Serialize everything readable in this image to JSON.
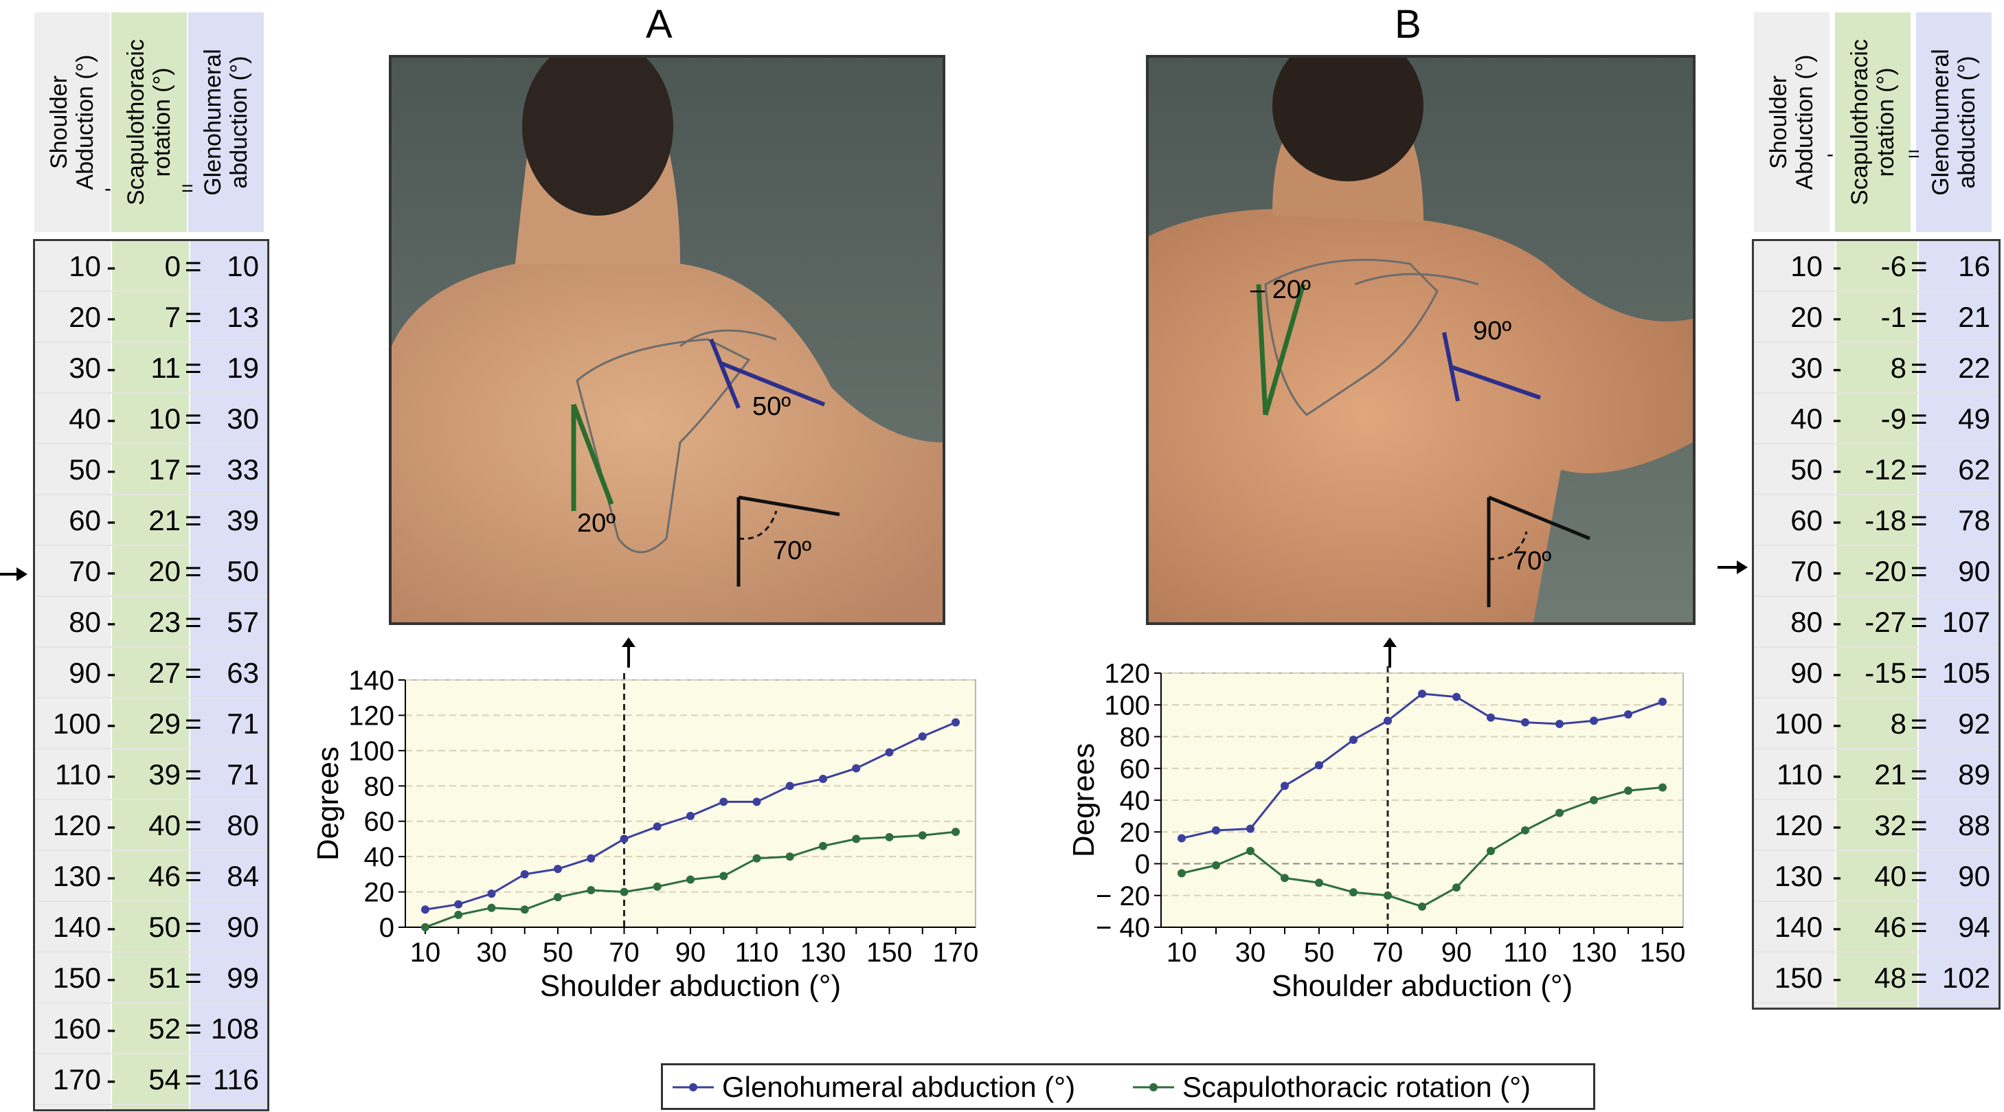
{
  "panel_labels": {
    "a": "A",
    "b": "B"
  },
  "table_headers": {
    "shoulder": "Shoulder\nAbduction (°)",
    "minus": "-",
    "scap": "Scapulothoracic\nrotation (°)",
    "equals": "=",
    "gleno": "Glenohumeral\nabduction (°)"
  },
  "table_a": {
    "rows": [
      {
        "s": "10",
        "op1": "-",
        "r": "0",
        "op2": "=",
        "g": "10"
      },
      {
        "s": "20",
        "op1": "-",
        "r": "7",
        "op2": "=",
        "g": "13"
      },
      {
        "s": "30",
        "op1": "-",
        "r": "11",
        "op2": "=",
        "g": "19"
      },
      {
        "s": "40",
        "op1": "-",
        "r": "10",
        "op2": "=",
        "g": "30"
      },
      {
        "s": "50",
        "op1": "-",
        "r": "17",
        "op2": "=",
        "g": "33"
      },
      {
        "s": "60",
        "op1": "-",
        "r": "21",
        "op2": "=",
        "g": "39"
      },
      {
        "s": "70",
        "op1": "-",
        "r": "20",
        "op2": "=",
        "g": "50"
      },
      {
        "s": "80",
        "op1": "-",
        "r": "23",
        "op2": "=",
        "g": "57"
      },
      {
        "s": "90",
        "op1": "-",
        "r": "27",
        "op2": "=",
        "g": "63"
      },
      {
        "s": "100",
        "op1": "-",
        "r": "29",
        "op2": "=",
        "g": "71"
      },
      {
        "s": "110",
        "op1": "-",
        "r": "39",
        "op2": "=",
        "g": "71"
      },
      {
        "s": "120",
        "op1": "-",
        "r": "40",
        "op2": "=",
        "g": "80"
      },
      {
        "s": "130",
        "op1": "-",
        "r": "46",
        "op2": "=",
        "g": "84"
      },
      {
        "s": "140",
        "op1": "-",
        "r": "50",
        "op2": "=",
        "g": "90"
      },
      {
        "s": "150",
        "op1": "-",
        "r": "51",
        "op2": "=",
        "g": "99"
      },
      {
        "s": "160",
        "op1": "-",
        "r": "52",
        "op2": "=",
        "g": "108"
      },
      {
        "s": "170",
        "op1": "-",
        "r": "54",
        "op2": "=",
        "g": "116"
      }
    ]
  },
  "table_b": {
    "rows": [
      {
        "s": "10",
        "op1": "-",
        "r": "-6",
        "op2": "=",
        "g": "16"
      },
      {
        "s": "20",
        "op1": "-",
        "r": "-1",
        "op2": "=",
        "g": "21"
      },
      {
        "s": "30",
        "op1": "-",
        "r": "8",
        "op2": "=",
        "g": "22"
      },
      {
        "s": "40",
        "op1": "-",
        "r": "-9",
        "op2": "=",
        "g": "49"
      },
      {
        "s": "50",
        "op1": "-",
        "r": "-12",
        "op2": "=",
        "g": "62"
      },
      {
        "s": "60",
        "op1": "-",
        "r": "-18",
        "op2": "=",
        "g": "78"
      },
      {
        "s": "70",
        "op1": "-",
        "r": "-20",
        "op2": "=",
        "g": "90"
      },
      {
        "s": "80",
        "op1": "-",
        "r": "-27",
        "op2": "=",
        "g": "107"
      },
      {
        "s": "90",
        "op1": "-",
        "r": "-15",
        "op2": "=",
        "g": "105"
      },
      {
        "s": "100",
        "op1": "-",
        "r": "8",
        "op2": "=",
        "g": "92"
      },
      {
        "s": "110",
        "op1": "-",
        "r": "21",
        "op2": "=",
        "g": "89"
      },
      {
        "s": "120",
        "op1": "-",
        "r": "32",
        "op2": "=",
        "g": "88"
      },
      {
        "s": "130",
        "op1": "-",
        "r": "40",
        "op2": "=",
        "g": "90"
      },
      {
        "s": "140",
        "op1": "-",
        "r": "46",
        "op2": "=",
        "g": "94"
      },
      {
        "s": "150",
        "op1": "-",
        "r": "48",
        "op2": "=",
        "g": "102"
      }
    ]
  },
  "photo_labels": {
    "a_green": "20º",
    "a_blue": "50º",
    "a_corner": "70º",
    "b_green": "– 20º",
    "b_blue": "90º",
    "b_corner": "70º"
  },
  "colors": {
    "blue_series": "#3b3f9e",
    "green_series": "#2e6e3e",
    "plot_bg": "#fbfbe6",
    "scap_col": "#d9e8c4",
    "gleno_col": "#dcdff5",
    "shoulder_col": "#eeeeee"
  },
  "legend": {
    "gleno": "Glenohumeral abduction (°)",
    "scap": "Scapulothoracic rotation (°)"
  },
  "chart_data": [
    {
      "type": "line",
      "xlabel": "Shoulder abduction (°)",
      "ylabel": "Degrees",
      "x": [
        10,
        20,
        30,
        40,
        50,
        60,
        70,
        80,
        90,
        100,
        110,
        120,
        130,
        140,
        150,
        160,
        170
      ],
      "xticks": [
        10,
        30,
        50,
        70,
        90,
        110,
        130,
        150,
        170
      ],
      "ylim": [
        0,
        140
      ],
      "yticks": [
        0,
        20,
        40,
        60,
        80,
        100,
        120,
        140
      ],
      "reference_line_x": 70,
      "grid": "horizontal dashed",
      "series": [
        {
          "name": "Glenohumeral abduction (°)",
          "values": [
            10,
            13,
            19,
            30,
            33,
            39,
            50,
            57,
            63,
            71,
            71,
            80,
            84,
            90,
            99,
            108,
            116
          ]
        },
        {
          "name": "Scapulothoracic rotation (°)",
          "values": [
            0,
            7,
            11,
            10,
            17,
            21,
            20,
            23,
            27,
            29,
            39,
            40,
            46,
            50,
            51,
            52,
            54
          ]
        }
      ]
    },
    {
      "type": "line",
      "xlabel": "Shoulder abduction (°)",
      "ylabel": "Degrees",
      "x": [
        10,
        20,
        30,
        40,
        50,
        60,
        70,
        80,
        90,
        100,
        110,
        120,
        130,
        140,
        150
      ],
      "xticks": [
        10,
        30,
        50,
        70,
        90,
        110,
        130,
        150
      ],
      "ylim": [
        -40,
        120
      ],
      "yticks": [
        -40,
        -20,
        0,
        20,
        40,
        60,
        80,
        100,
        120
      ],
      "ytick_labels": [
        "− 40",
        "− 20",
        "0",
        "20",
        "40",
        "60",
        "80",
        "100",
        "120"
      ],
      "reference_line_x": 70,
      "grid": "horizontal dashed",
      "series": [
        {
          "name": "Glenohumeral abduction (°)",
          "values": [
            16,
            21,
            22,
            49,
            62,
            78,
            90,
            107,
            105,
            92,
            89,
            88,
            90,
            94,
            102
          ]
        },
        {
          "name": "Scapulothoracic rotation (°)",
          "values": [
            -6,
            -1,
            8,
            -9,
            -12,
            -18,
            -20,
            -27,
            -15,
            8,
            21,
            32,
            40,
            46,
            48
          ]
        }
      ]
    }
  ]
}
